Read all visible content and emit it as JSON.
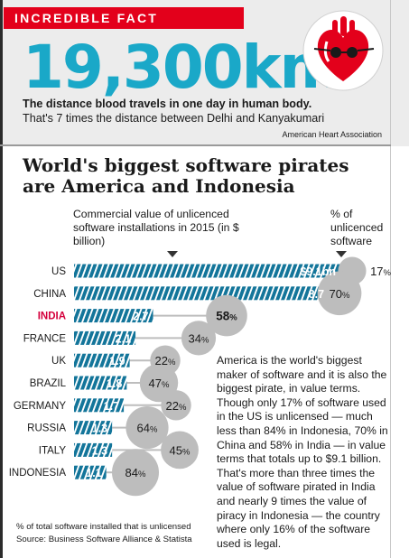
{
  "fact": {
    "badge": "INCREDIBLE FACT",
    "big_number": "19,300km",
    "line1": "The distance blood travels in one day in human body.",
    "line2": "That's 7 times the distance between Delhi and Kanyakumari",
    "source": "American Heart Association"
  },
  "headline": {
    "line1": "World's biggest software pirates",
    "line2": "are America and Indonesia"
  },
  "subhead": {
    "left": "Commercial value of unlicenced software installations in 2015 (in $ billion)",
    "right": "% of unlicenced software"
  },
  "story": "America is the world's biggest maker of software and it is also the biggest pirate, in value terms. Though only 17% of software used in the US is unlicensed — much less than 84% in Indonesia, 70% in China and 58% in India — in value terms that totals up to $9.1 billion. That's more than three times the value of software pirated in India and nearly 9 times the value of piracy in Indonesia — the country where only 16% of the software used is legal.",
  "footnote": "% of total software installed that is unlicensed",
  "source_line": "Source: Business Software Alliance & Statista",
  "colors": {
    "accent_red": "#e3001b",
    "number_cyan": "#1aa8c8",
    "bar_blue": "#13759a",
    "bubble_grey": "#bdbdbd",
    "highlight_country": "#d4003c"
  },
  "chart_data": {
    "type": "bar",
    "categories": [
      "US",
      "CHINA",
      "INDIA",
      "FRANCE",
      "UK",
      "BRAZIL",
      "GERMANY",
      "RUSSIA",
      "ITALY",
      "INDONESIA"
    ],
    "highlight_category": "INDIA",
    "series": [
      {
        "values": [
          9.1,
          8.7,
          2.7,
          2.1,
          1.9,
          1.8,
          1.7,
          1.3,
          1.3,
          1.1
        ],
        "labels": [
          "$9.1bn",
          "8.7",
          "2.7",
          "2.1",
          "1.9",
          "1.8",
          "1.7",
          "1.3",
          "1.3",
          "1.1"
        ]
      },
      {
        "values": [
          17,
          70,
          58,
          34,
          22,
          47,
          22,
          64,
          45,
          84
        ],
        "unit": "%"
      }
    ]
  }
}
